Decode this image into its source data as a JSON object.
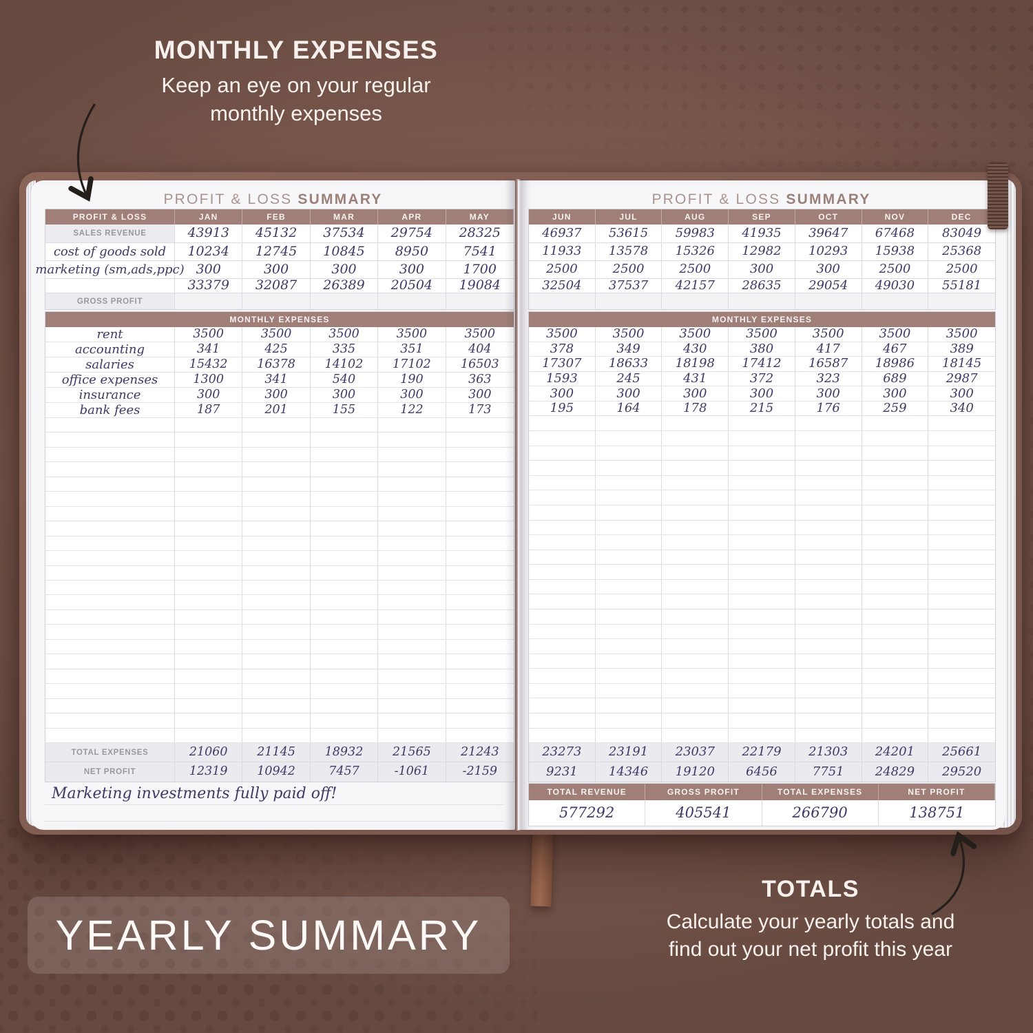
{
  "colors": {
    "background": "#7c594e",
    "cover": "#8a6457",
    "page": "#f7f7f9",
    "accent": "#9f7f77",
    "ink": "#3d3a66",
    "label_gray": "#98979f",
    "grid_line": "#d9dae2",
    "band": "#ebebef",
    "text_light": "#f7f1ed",
    "ribbon": "#a06c52",
    "arrow": "#241f1b"
  },
  "annotations": {
    "top": {
      "title": "MONTHLY EXPENSES",
      "line1": "Keep an eye on your regular",
      "line2": "monthly expenses"
    },
    "banner": "YEARLY SUMMARY",
    "totals": {
      "title": "TOTALS",
      "line1": "Calculate your yearly totals and",
      "line2": "find out your net profit this year"
    }
  },
  "page_title": {
    "regular": "PROFIT & LOSS",
    "bold": "SUMMARY"
  },
  "left": {
    "corner_label": "PROFIT & LOSS",
    "months": [
      "JAN",
      "FEB",
      "MAR",
      "APR",
      "MAY"
    ],
    "sales_label": "SALES REVENUE",
    "sales": [
      "43913",
      "45132",
      "37534",
      "29754",
      "28325"
    ],
    "cogs_label": "cost of goods sold",
    "cogs": [
      "10234",
      "12745",
      "10845",
      "8950",
      "7541"
    ],
    "marketing_label": "marketing (sm,ads,ppc)",
    "marketing": [
      "300",
      "300",
      "300",
      "300",
      "1700"
    ],
    "gross": [
      "33379",
      "32087",
      "26389",
      "20504",
      "19084"
    ],
    "gross_label": "GROSS PROFIT",
    "expenses_header": "MONTHLY EXPENSES",
    "expense_rows": [
      {
        "label": "rent",
        "values": [
          "3500",
          "3500",
          "3500",
          "3500",
          "3500"
        ]
      },
      {
        "label": "accounting",
        "values": [
          "341",
          "425",
          "335",
          "351",
          "404"
        ]
      },
      {
        "label": "salaries",
        "values": [
          "15432",
          "16378",
          "14102",
          "17102",
          "16503"
        ]
      },
      {
        "label": "office expenses",
        "values": [
          "1300",
          "341",
          "540",
          "190",
          "363"
        ]
      },
      {
        "label": "insurance",
        "values": [
          "300",
          "300",
          "300",
          "300",
          "300"
        ]
      },
      {
        "label": "bank fees",
        "values": [
          "187",
          "201",
          "155",
          "122",
          "173"
        ]
      }
    ],
    "empty_row_count": 22,
    "total_expenses_label": "TOTAL EXPENSES",
    "total_expenses": [
      "21060",
      "21145",
      "18932",
      "21565",
      "21243"
    ],
    "net_profit_label": "NET PROFIT",
    "net_profit": [
      "12319",
      "10942",
      "7457",
      "-1061",
      "-2159"
    ],
    "note": "Marketing investments fully paid off!"
  },
  "right": {
    "months": [
      "JUN",
      "JUL",
      "AUG",
      "SEP",
      "OCT",
      "NOV",
      "DEC"
    ],
    "sales": [
      "46937",
      "53615",
      "59983",
      "41935",
      "39647",
      "67468",
      "83049"
    ],
    "cogs": [
      "11933",
      "13578",
      "15326",
      "12982",
      "10293",
      "15938",
      "25368"
    ],
    "marketing": [
      "2500",
      "2500",
      "2500",
      "300",
      "300",
      "2500",
      "2500"
    ],
    "gross": [
      "32504",
      "37537",
      "42157",
      "28635",
      "29054",
      "49030",
      "55181"
    ],
    "expenses_header": "MONTHLY EXPENSES",
    "expense_rows": [
      {
        "values": [
          "3500",
          "3500",
          "3500",
          "3500",
          "3500",
          "3500",
          "3500"
        ]
      },
      {
        "values": [
          "378",
          "349",
          "430",
          "380",
          "417",
          "467",
          "389"
        ]
      },
      {
        "values": [
          "17307",
          "18633",
          "18198",
          "17412",
          "16587",
          "18986",
          "18145"
        ]
      },
      {
        "values": [
          "1593",
          "245",
          "431",
          "372",
          "323",
          "689",
          "2987"
        ]
      },
      {
        "values": [
          "300",
          "300",
          "300",
          "300",
          "300",
          "300",
          "300"
        ]
      },
      {
        "values": [
          "195",
          "164",
          "178",
          "215",
          "176",
          "259",
          "340"
        ]
      }
    ],
    "empty_row_count": 22,
    "total_expenses": [
      "23273",
      "23191",
      "23037",
      "22179",
      "21303",
      "24201",
      "25661"
    ],
    "net_profit": [
      "9231",
      "14346",
      "19120",
      "6456",
      "7751",
      "24829",
      "29520"
    ],
    "totals": {
      "headers": [
        "TOTAL REVENUE",
        "GROSS PROFIT",
        "TOTAL EXPENSES",
        "NET PROFIT"
      ],
      "values": [
        "577292",
        "405541",
        "266790",
        "138751"
      ]
    }
  }
}
